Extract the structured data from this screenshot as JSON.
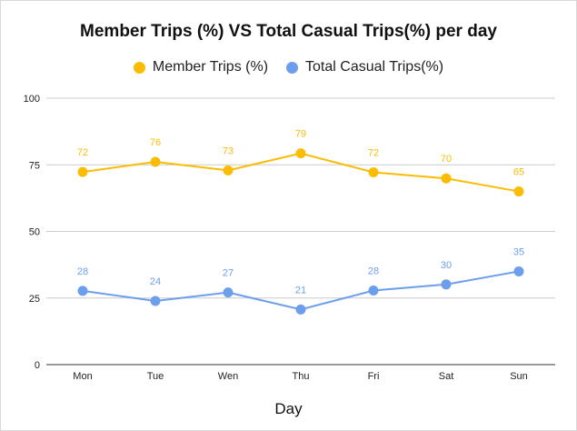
{
  "chart_data": {
    "type": "line",
    "title": "Member Trips (%) VS Total Casual Trips(%) per day",
    "xlabel": "Day",
    "ylabel": "",
    "categories": [
      "Mon",
      "Tue",
      "Wen",
      "Thu",
      "Fri",
      "Sat",
      "Sun"
    ],
    "ylim": [
      0,
      100
    ],
    "yticks": [
      0,
      25,
      50,
      75,
      100
    ],
    "grid": true,
    "legend_position": "top",
    "series": [
      {
        "name": "Member Trips (%)",
        "color": "#fbbc04",
        "values": [
          72.3,
          76.1,
          72.9,
          79.3,
          72.2,
          69.9,
          65.0
        ],
        "labels": [
          "72",
          "76",
          "73",
          "79",
          "72",
          "70",
          "65"
        ]
      },
      {
        "name": "Total Casual Trips(%)",
        "color": "#6d9eeb",
        "values": [
          27.7,
          23.9,
          27.1,
          20.7,
          27.8,
          30.1,
          35.0
        ],
        "labels": [
          "28",
          "24",
          "27",
          "21",
          "28",
          "30",
          "35"
        ]
      }
    ]
  }
}
